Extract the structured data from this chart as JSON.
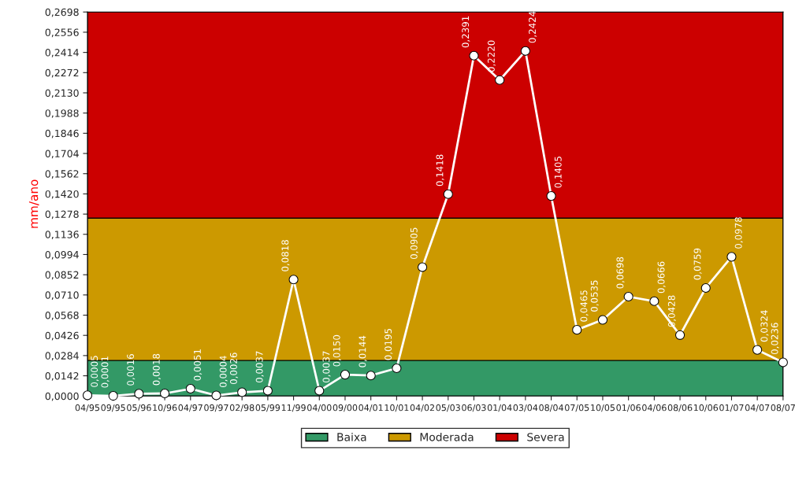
{
  "chart_data": {
    "type": "line",
    "ylabel": "mm/ano",
    "categories": [
      "04/95",
      "09/95",
      "05/96",
      "10/96",
      "04/97",
      "09/97",
      "02/98",
      "05/99",
      "11/99",
      "04/00",
      "09/00",
      "04/01",
      "10/01",
      "04/02",
      "05/03",
      "06/03",
      "01/04",
      "03/04",
      "08/04",
      "07/05",
      "10/05",
      "01/06",
      "04/06",
      "08/06",
      "10/06",
      "01/07",
      "04/07",
      "08/07"
    ],
    "series": [
      {
        "color": "#ffffff",
        "values": [
          0.0005,
          0.0001,
          0.0016,
          0.0018,
          0.0051,
          0.0004,
          0.0026,
          0.0037,
          0.0818,
          0.0037,
          0.015,
          0.0144,
          0.0195,
          0.0905,
          0.1418,
          0.2391,
          0.222,
          0.2424,
          0.1405,
          0.0465,
          0.0535,
          0.0698,
          0.0666,
          0.0428,
          0.0759,
          0.0978,
          0.0324,
          0.0236
        ],
        "value_labels": [
          "0,0005",
          "0,0001",
          "0,0016",
          "0,0018",
          "0,0051",
          "0,0004",
          "0,0026",
          "0,0037",
          "0,0818",
          "0,0037",
          "0,0150",
          "0,0144",
          "0,0195",
          "0,0905",
          "0,1418",
          "0,2391",
          "0,2220",
          "0,2424",
          "0,1405",
          "0,0465",
          "0,0535",
          "0,0698",
          "0,0666",
          "0,0428",
          "0,0759",
          "0,0978",
          "0,0324",
          "0,0236"
        ]
      }
    ],
    "ylim": [
      0,
      0.2698
    ],
    "yticks": [
      {
        "value": 0,
        "label": "0,0000"
      },
      {
        "value": 0.0142,
        "label": "0,0142"
      },
      {
        "value": 0.0284,
        "label": "0,0284"
      },
      {
        "value": 0.0426,
        "label": "0,0426"
      },
      {
        "value": 0.0568,
        "label": "0,0568"
      },
      {
        "value": 0.071,
        "label": "0,0710"
      },
      {
        "value": 0.0852,
        "label": "0,0852"
      },
      {
        "value": 0.0994,
        "label": "0,0994"
      },
      {
        "value": 0.1136,
        "label": "0,1136"
      },
      {
        "value": 0.1278,
        "label": "0,1278"
      },
      {
        "value": 0.142,
        "label": "0,1420"
      },
      {
        "value": 0.1562,
        "label": "0,1562"
      },
      {
        "value": 0.1704,
        "label": "0,1704"
      },
      {
        "value": 0.1846,
        "label": "0,1846"
      },
      {
        "value": 0.1988,
        "label": "0,1988"
      },
      {
        "value": 0.213,
        "label": "0,2130"
      },
      {
        "value": 0.2272,
        "label": "0,2272"
      },
      {
        "value": 0.2414,
        "label": "0,2414"
      },
      {
        "value": 0.2556,
        "label": "0,2556"
      },
      {
        "value": 0.2698,
        "label": "0,2698"
      }
    ],
    "bands": [
      {
        "axis": "y",
        "from": 0,
        "to": 0.025,
        "label": "Baixa",
        "color": "#339966"
      },
      {
        "axis": "y",
        "from": 0.025,
        "to": 0.125,
        "label": "Moderada",
        "color": "#cc9900"
      },
      {
        "axis": "y",
        "from": 0.125,
        "to": 0.2698,
        "label": "Severa",
        "color": "#cc0000"
      }
    ],
    "marker": "circle",
    "line_style": "solid",
    "grid": false,
    "legend": "bottom"
  }
}
